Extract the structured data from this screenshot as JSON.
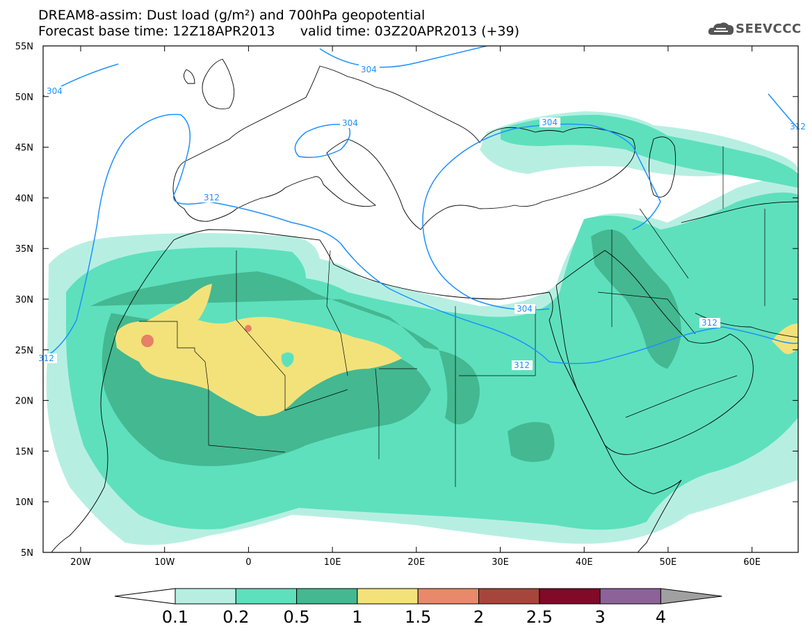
{
  "header": {
    "line1": "DREAM8-assim: Dust load (g/m²) and 700hPa geopotential",
    "line2": "Forecast base time: 12Z18APR2013      valid time: 03Z20APR2013 (+39)",
    "logo_text": "SEEVCCC"
  },
  "map": {
    "lat_ticks": [
      "55N",
      "50N",
      "45N",
      "40N",
      "35N",
      "30N",
      "25N",
      "20N",
      "15N",
      "10N",
      "5N"
    ],
    "lon_ticks": [
      "20W",
      "10W",
      "0",
      "10E",
      "20E",
      "30E",
      "40E",
      "50E",
      "60E"
    ],
    "contour_labels": [
      "304",
      "304",
      "304",
      "304",
      "312",
      "312",
      "312",
      "312",
      "304",
      "312"
    ],
    "fill_colors": {
      "c01": "#b6efe2",
      "c02": "#5ee0bd",
      "c05": "#44b890",
      "c1": "#f3e27a",
      "c15": "#e87f67"
    },
    "contour_color": "#1e90ff"
  },
  "colorbar": {
    "labels": [
      "0.1",
      "0.2",
      "0.5",
      "1",
      "1.5",
      "2",
      "2.5",
      "3",
      "4"
    ],
    "colors": [
      "#b6efe2",
      "#5ee0bd",
      "#44b890",
      "#f3e27a",
      "#e8896a",
      "#a6453b",
      "#800a28",
      "#8c6299"
    ]
  }
}
